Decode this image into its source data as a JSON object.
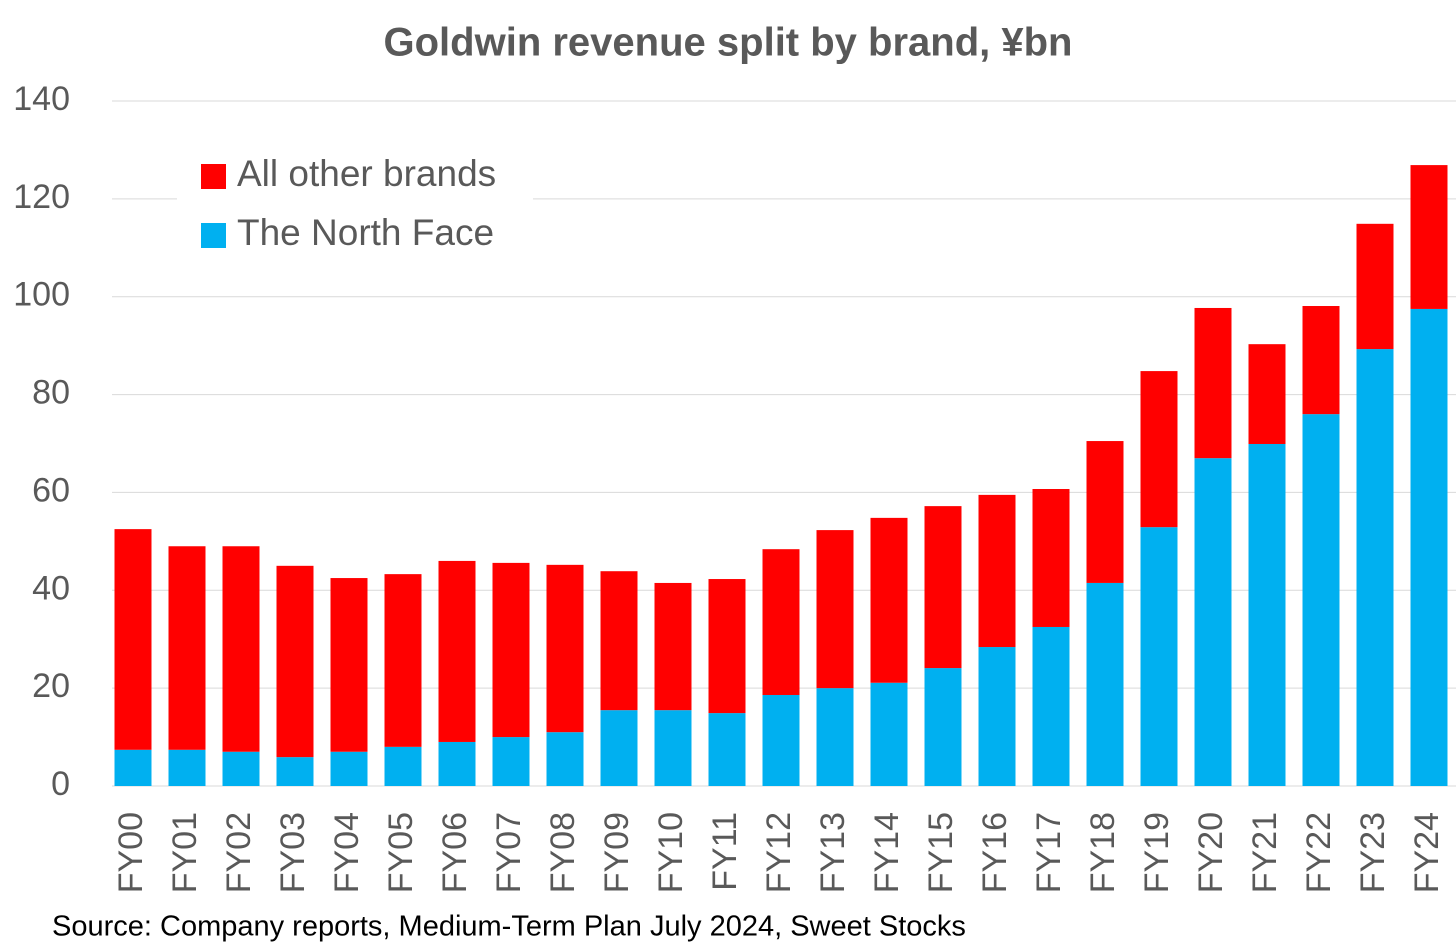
{
  "chart_data": {
    "type": "stacked_bar",
    "title": "Goldwin revenue split by brand, ¥bn",
    "source": "Source: Company reports, Medium-Term Plan July 2024, Sweet Stocks",
    "categories": [
      "FY00",
      "FY01",
      "FY02",
      "FY03",
      "FY04",
      "FY05",
      "FY06",
      "FY07",
      "FY08",
      "FY09",
      "FY10",
      "FY11",
      "FY12",
      "FY13",
      "FY14",
      "FY15",
      "FY16",
      "FY17",
      "FY18",
      "FY19",
      "FY20",
      "FY21",
      "FY22",
      "FY23",
      "FY24"
    ],
    "series": [
      {
        "name": "The North Face",
        "color": "#00b0f0",
        "values": [
          7.4,
          7.4,
          7.0,
          5.9,
          7.0,
          8.0,
          9.0,
          10.0,
          11.0,
          15.5,
          15.5,
          14.9,
          18.6,
          20.0,
          21.1,
          24.1,
          28.4,
          32.5,
          41.5,
          52.9,
          67.0,
          69.9,
          76.0,
          89.3,
          97.5
        ]
      },
      {
        "name": "All other brands",
        "color": "#ff0000",
        "values": [
          45.1,
          41.6,
          42.0,
          39.1,
          35.5,
          35.3,
          37.0,
          35.6,
          34.2,
          28.4,
          26.0,
          27.4,
          29.8,
          32.3,
          33.7,
          33.1,
          31.1,
          28.2,
          29.0,
          31.9,
          30.7,
          20.4,
          22.1,
          25.6,
          29.4
        ]
      }
    ],
    "ylim": [
      0,
      140
    ],
    "yticks": [
      0,
      20,
      40,
      60,
      80,
      100,
      120,
      140
    ],
    "grid": true,
    "legend": "upper left"
  }
}
